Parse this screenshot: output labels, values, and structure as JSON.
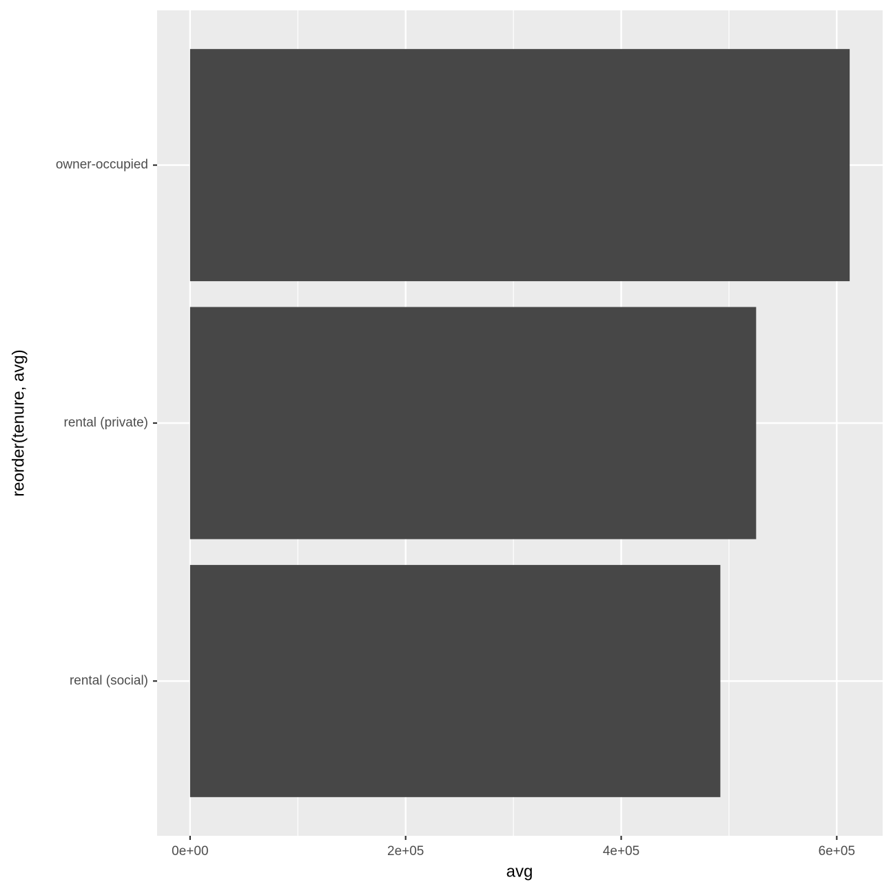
{
  "chart_data": {
    "type": "hbar",
    "categories": [
      "owner-occupied",
      "rental (private)",
      "rental (social)"
    ],
    "values": [
      612000,
      525200,
      492000
    ],
    "color": "#474747",
    "xlabel": "avg",
    "ylabel": "reorder(tenure, avg)",
    "xlim": [
      -30600,
      642600
    ],
    "xticks": [
      {
        "value": 0,
        "label": "0e+00"
      },
      {
        "value": 200000,
        "label": "2e+05"
      },
      {
        "value": 400000,
        "label": "4e+05"
      },
      {
        "value": 600000,
        "label": "6e+05"
      }
    ],
    "xminor_ticks": [
      100000,
      300000,
      500000
    ],
    "grid": true
  }
}
